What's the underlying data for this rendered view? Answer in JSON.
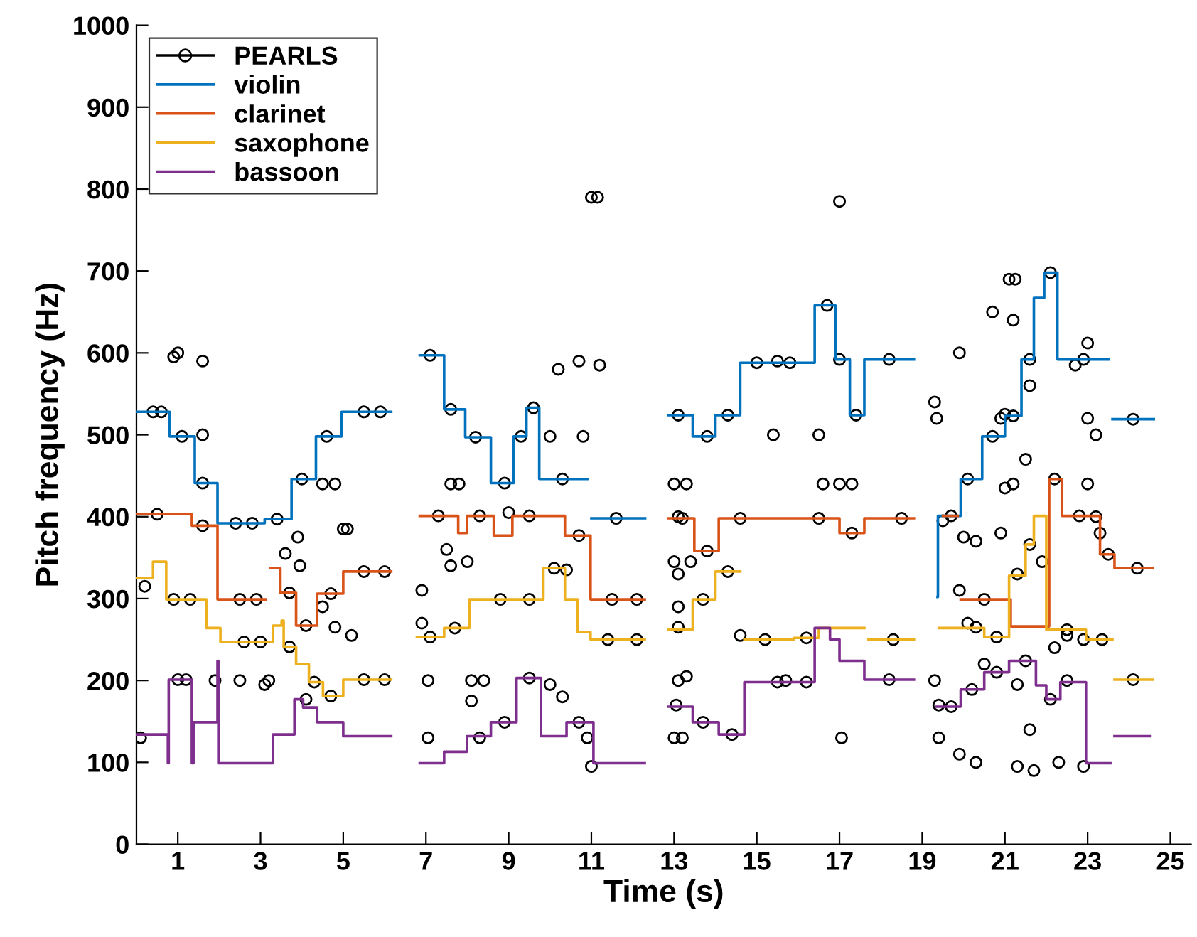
{
  "chart_data": {
    "type": "step",
    "xlabel": "Time (s)",
    "ylabel": "Pitch frequency (Hz)",
    "xlim": [
      0,
      25.5
    ],
    "xticks": [
      1,
      3,
      5,
      7,
      9,
      11,
      13,
      15,
      17,
      19,
      21,
      23,
      25
    ],
    "ylim": [
      0,
      1000
    ],
    "yticks": [
      0,
      100,
      200,
      300,
      400,
      500,
      600,
      700,
      800,
      900,
      1000
    ],
    "grid": false,
    "legend": "top left",
    "series": [
      {
        "name": "PEARLS",
        "type": "scatter",
        "marker": "circle",
        "color": "#000000",
        "x": [
          0.1,
          0.2,
          0.9,
          1.0,
          1.6,
          1.6,
          1.9,
          2.5,
          3.1,
          3.2,
          3.6,
          3.9,
          3.95,
          4.5,
          4.8,
          5.0,
          5.1,
          4.8,
          5.2,
          4.5,
          6.9,
          6.9,
          7.05,
          7.05,
          7.6,
          7.8,
          7.5,
          7.6,
          8.0,
          8.1,
          8.3,
          8.1,
          8.4,
          9.0,
          10.3,
          10.2,
          10.7,
          10.0,
          10.8,
          10.0,
          10.4,
          11.0,
          10.9,
          11.0,
          11.15,
          11.2,
          13.0,
          13.1,
          13.3,
          13.1,
          13.05,
          13.0,
          13.2,
          13.0,
          13.1,
          13.3,
          13.1,
          13.4,
          13.1,
          14.6,
          15.4,
          15.7,
          15.5,
          16.5,
          16.6,
          17.0,
          17.0,
          17.3,
          17.05,
          19.3,
          19.35,
          19.5,
          19.3,
          19.4,
          19.4,
          19.9,
          20.0,
          20.3,
          19.9,
          20.1,
          20.3,
          20.3,
          19.9,
          20.5,
          20.7,
          20.9,
          21.0,
          21.2,
          21.0,
          20.9,
          21.1,
          21.2,
          21.25,
          21.5,
          21.3,
          21.3,
          21.6,
          21.7,
          21.3,
          21.6,
          21.9,
          22.2,
          22.5,
          22.3,
          22.5,
          22.7,
          22.9,
          22.9,
          23.0,
          23.2,
          23.0,
          23.3,
          23.2,
          23.35,
          23.0,
          0.4,
          0.6,
          1.1,
          1.6,
          2.4,
          2.8,
          3.4,
          4.0,
          4.6,
          5.5,
          5.9,
          0.5,
          1.6,
          2.5,
          2.9,
          3.7,
          4.1,
          4.7,
          5.5,
          6.0,
          0.9,
          1.3,
          2.6,
          3.0,
          3.7,
          4.3,
          4.7,
          5.5,
          6.0,
          1.0,
          1.2,
          4.1,
          7.1,
          7.6,
          8.2,
          8.9,
          9.3,
          9.6,
          10.3,
          11.6,
          7.3,
          8.3,
          9.5,
          10.7,
          11.5,
          12.1,
          7.1,
          7.7,
          8.8,
          9.5,
          10.1,
          11.4,
          12.1,
          9.5,
          8.9,
          10.7,
          13.1,
          13.8,
          14.3,
          15.0,
          15.8,
          16.7,
          17.0,
          17.4,
          18.2,
          13.2,
          13.8,
          14.6,
          16.5,
          17.3,
          18.5,
          13.7,
          14.3,
          15.2,
          16.2,
          18.3,
          13.7,
          14.4,
          15.5,
          16.2,
          18.2,
          20.1,
          20.7,
          21.2,
          21.6,
          22.1,
          22.9,
          24.1,
          19.7,
          20.5,
          22.2,
          22.8,
          23.5,
          24.2,
          20.8,
          21.6,
          22.5,
          24.1,
          19.7,
          20.2,
          20.8,
          21.5,
          22.1
        ],
        "values": [
          130,
          315,
          595,
          600,
          590,
          500,
          200,
          200,
          195,
          200,
          355,
          375,
          340,
          440,
          440,
          385,
          385,
          265,
          255,
          290,
          310,
          270,
          130,
          200,
          440,
          440,
          360,
          340,
          345,
          175,
          130,
          200,
          200,
          405,
          180,
          580,
          590,
          498,
          498,
          195,
          335,
          95,
          130,
          790,
          790,
          585,
          440,
          400,
          440,
          200,
          170,
          130,
          130,
          345,
          330,
          205,
          265,
          345,
          290,
          255,
          500,
          200,
          590,
          500,
          440,
          785,
          440,
          440,
          130,
          540,
          520,
          395,
          200,
          170,
          130,
          600,
          375,
          370,
          310,
          270,
          265,
          100,
          110,
          220,
          650,
          520,
          435,
          440,
          525,
          380,
          690,
          640,
          690,
          470,
          330,
          195,
          140,
          90,
          95,
          560,
          345,
          240,
          255,
          100,
          200,
          585,
          95,
          250,
          520,
          500,
          612,
          380,
          400,
          250,
          440,
          528,
          528,
          498,
          441,
          392,
          392,
          397,
          446,
          498,
          528,
          528,
          403,
          389,
          299,
          299,
          307,
          267,
          306,
          333,
          333,
          299,
          299,
          247,
          247,
          241,
          198,
          181,
          201,
          201,
          201,
          201,
          177,
          597,
          531,
          497,
          441,
          498,
          533,
          446,
          398,
          401,
          401,
          401,
          377,
          299,
          299,
          253,
          264,
          299,
          299,
          337,
          250,
          250,
          203,
          149,
          149,
          524,
          498,
          524,
          588,
          588,
          658,
          592,
          524,
          592,
          398,
          358,
          398,
          398,
          380,
          398,
          299,
          333,
          250,
          252,
          250,
          149,
          134,
          198,
          198,
          201,
          446,
          498,
          523,
          592,
          698,
          592,
          519,
          401,
          299,
          446,
          401,
          354,
          337,
          253,
          366,
          262,
          201,
          168,
          189,
          210,
          224,
          177
        ]
      },
      {
        "name": "violin",
        "color": "#0072bd",
        "x": [
          0.03,
          0.8,
          1.41,
          1.96,
          3.1,
          3.75,
          4.34,
          4.96,
          6.16,
          null,
          6.85,
          7.44,
          7.95,
          8.57,
          9.12,
          9.43,
          9.74,
          10.9,
          null,
          11.0,
          12.3,
          null,
          12.87,
          13.45,
          14.0,
          14.6,
          16.4,
          16.9,
          17.25,
          17.6,
          18.8,
          null,
          19.37,
          19.38,
          19.93,
          20.45,
          21.0,
          21.4,
          21.7,
          21.95,
          22.27,
          23.5,
          null,
          23.6,
          24.6
        ],
        "values": [
          528,
          498,
          441,
          392,
          397,
          446,
          498,
          528,
          528,
          null,
          597,
          531,
          497,
          441,
          498,
          533,
          446,
          446,
          null,
          398,
          398,
          null,
          524,
          498,
          524,
          588,
          658,
          592,
          524,
          592,
          592,
          null,
          302,
          401,
          446,
          498,
          523,
          592,
          667,
          698,
          592,
          592,
          null,
          519,
          519
        ]
      },
      {
        "name": "clarinet",
        "color": "#d95319",
        "x": [
          0.03,
          1.34,
          1.96,
          3.13,
          null,
          3.24,
          3.48,
          3.86,
          4.37,
          5.0,
          6.16,
          null,
          6.85,
          7.78,
          7.99,
          8.64,
          9.09,
          10.36,
          10.98,
          12.29,
          null,
          12.87,
          13.49,
          14.08,
          15.87,
          null,
          15.9,
          17.0,
          17.6,
          18.8,
          null,
          19.5,
          19.86,
          null,
          19.93,
          21.14,
          22.07,
          22.38,
          23.3,
          23.65,
          24.58
        ],
        "values": [
          403,
          389,
          299,
          299,
          null,
          337,
          307,
          267,
          306,
          333,
          333,
          null,
          401,
          380,
          401,
          377,
          401,
          377,
          299,
          299,
          null,
          398,
          358,
          398,
          398,
          null,
          398,
          380,
          398,
          398,
          null,
          401,
          401,
          null,
          299,
          266,
          446,
          401,
          354,
          337,
          337
        ]
      },
      {
        "name": "saxophone",
        "color": "#edb120",
        "x": [
          0.03,
          0.4,
          0.72,
          1.69,
          2.03,
          3.3,
          3.51,
          3.56,
          3.86,
          4.17,
          4.51,
          5.0,
          6.16,
          null,
          6.78,
          7.44,
          8.05,
          9.84,
          10.36,
          10.67,
          10.98,
          12.29,
          null,
          12.87,
          13.45,
          14.0,
          14.6,
          null,
          14.7,
          15.9,
          16.5,
          17.6,
          null,
          17.7,
          18.8,
          null,
          19.4,
          20.5,
          21.1,
          21.5,
          21.7,
          22.0,
          22.96,
          23.6,
          null,
          23.65,
          24.58
        ],
        "values": [
          325,
          345,
          299,
          264,
          247,
          267,
          273,
          241,
          220,
          198,
          181,
          201,
          201,
          null,
          253,
          264,
          299,
          337,
          299,
          259,
          250,
          250,
          null,
          262,
          299,
          333,
          333,
          null,
          250,
          252,
          264,
          264,
          null,
          250,
          250,
          null,
          264,
          253,
          328,
          366,
          401,
          262,
          250,
          250,
          null,
          201,
          201
        ]
      },
      {
        "name": "bassoon",
        "color": "#7e2f8e",
        "x": [
          0.03,
          0.76,
          0.78,
          1.34,
          1.38,
          1.96,
          1.98,
          3.3,
          3.82,
          4.03,
          4.37,
          5.0,
          6.16,
          null,
          6.85,
          7.44,
          7.99,
          8.57,
          9.19,
          9.78,
          10.4,
          11.05,
          12.29,
          null,
          12.87,
          13.45,
          14.08,
          14.7,
          16.4,
          16.77,
          17.0,
          17.6,
          18.8,
          null,
          19.35,
          19.93,
          20.5,
          21.1,
          21.75,
          22.0,
          22.34,
          22.96,
          23.55,
          null,
          23.65,
          24.5
        ],
        "values": [
          134,
          99,
          201,
          99,
          149,
          224,
          99,
          134,
          177,
          167,
          149,
          132,
          132,
          null,
          99,
          113,
          132,
          149,
          203,
          132,
          149,
          99,
          99,
          null,
          168,
          149,
          134,
          198,
          264,
          250,
          224,
          201,
          201,
          null,
          168,
          189,
          210,
          224,
          194,
          177,
          198,
          99,
          99,
          null,
          132,
          132
        ]
      }
    ]
  }
}
